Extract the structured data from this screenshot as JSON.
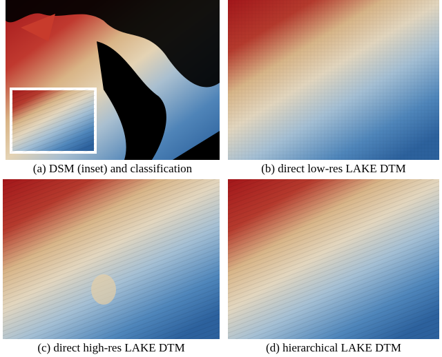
{
  "panels": [
    {
      "caption": "(a) DSM (inset) and classification"
    },
    {
      "caption": "(b) direct low-res LAKE DTM"
    },
    {
      "caption": "(c) direct high-res LAKE DTM"
    },
    {
      "caption": "(d) hierarchical LAKE DTM"
    }
  ]
}
